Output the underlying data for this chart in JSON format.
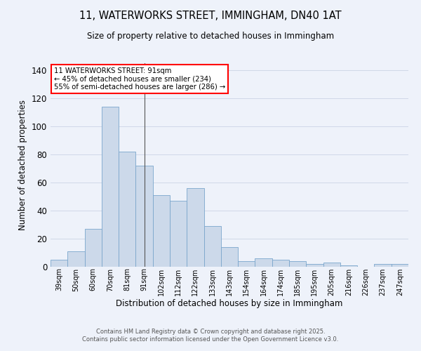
{
  "title_line1": "11, WATERWORKS STREET, IMMINGHAM, DN40 1AT",
  "title_line2": "Size of property relative to detached houses in Immingham",
  "xlabel": "Distribution of detached houses by size in Immingham",
  "ylabel": "Number of detached properties",
  "bar_color": "#ccd9ea",
  "bar_edge_color": "#7aa6cc",
  "categories": [
    "39sqm",
    "50sqm",
    "60sqm",
    "70sqm",
    "81sqm",
    "91sqm",
    "102sqm",
    "112sqm",
    "122sqm",
    "133sqm",
    "143sqm",
    "154sqm",
    "164sqm",
    "174sqm",
    "185sqm",
    "195sqm",
    "205sqm",
    "216sqm",
    "226sqm",
    "237sqm",
    "247sqm"
  ],
  "values": [
    5,
    11,
    27,
    114,
    82,
    72,
    51,
    47,
    56,
    29,
    14,
    4,
    6,
    5,
    4,
    2,
    3,
    1,
    0,
    2,
    2
  ],
  "ylim": [
    0,
    145
  ],
  "yticks": [
    0,
    20,
    40,
    60,
    80,
    100,
    120,
    140
  ],
  "annotation_line1": "11 WATERWORKS STREET: 91sqm",
  "annotation_line2": "← 45% of detached houses are smaller (234)",
  "annotation_line3": "55% of semi-detached houses are larger (286) →",
  "vline_index": 5,
  "footer_line1": "Contains HM Land Registry data © Crown copyright and database right 2025.",
  "footer_line2": "Contains public sector information licensed under the Open Government Licence v3.0.",
  "grid_color": "#d0d8e8",
  "background_color": "#eef2fa"
}
